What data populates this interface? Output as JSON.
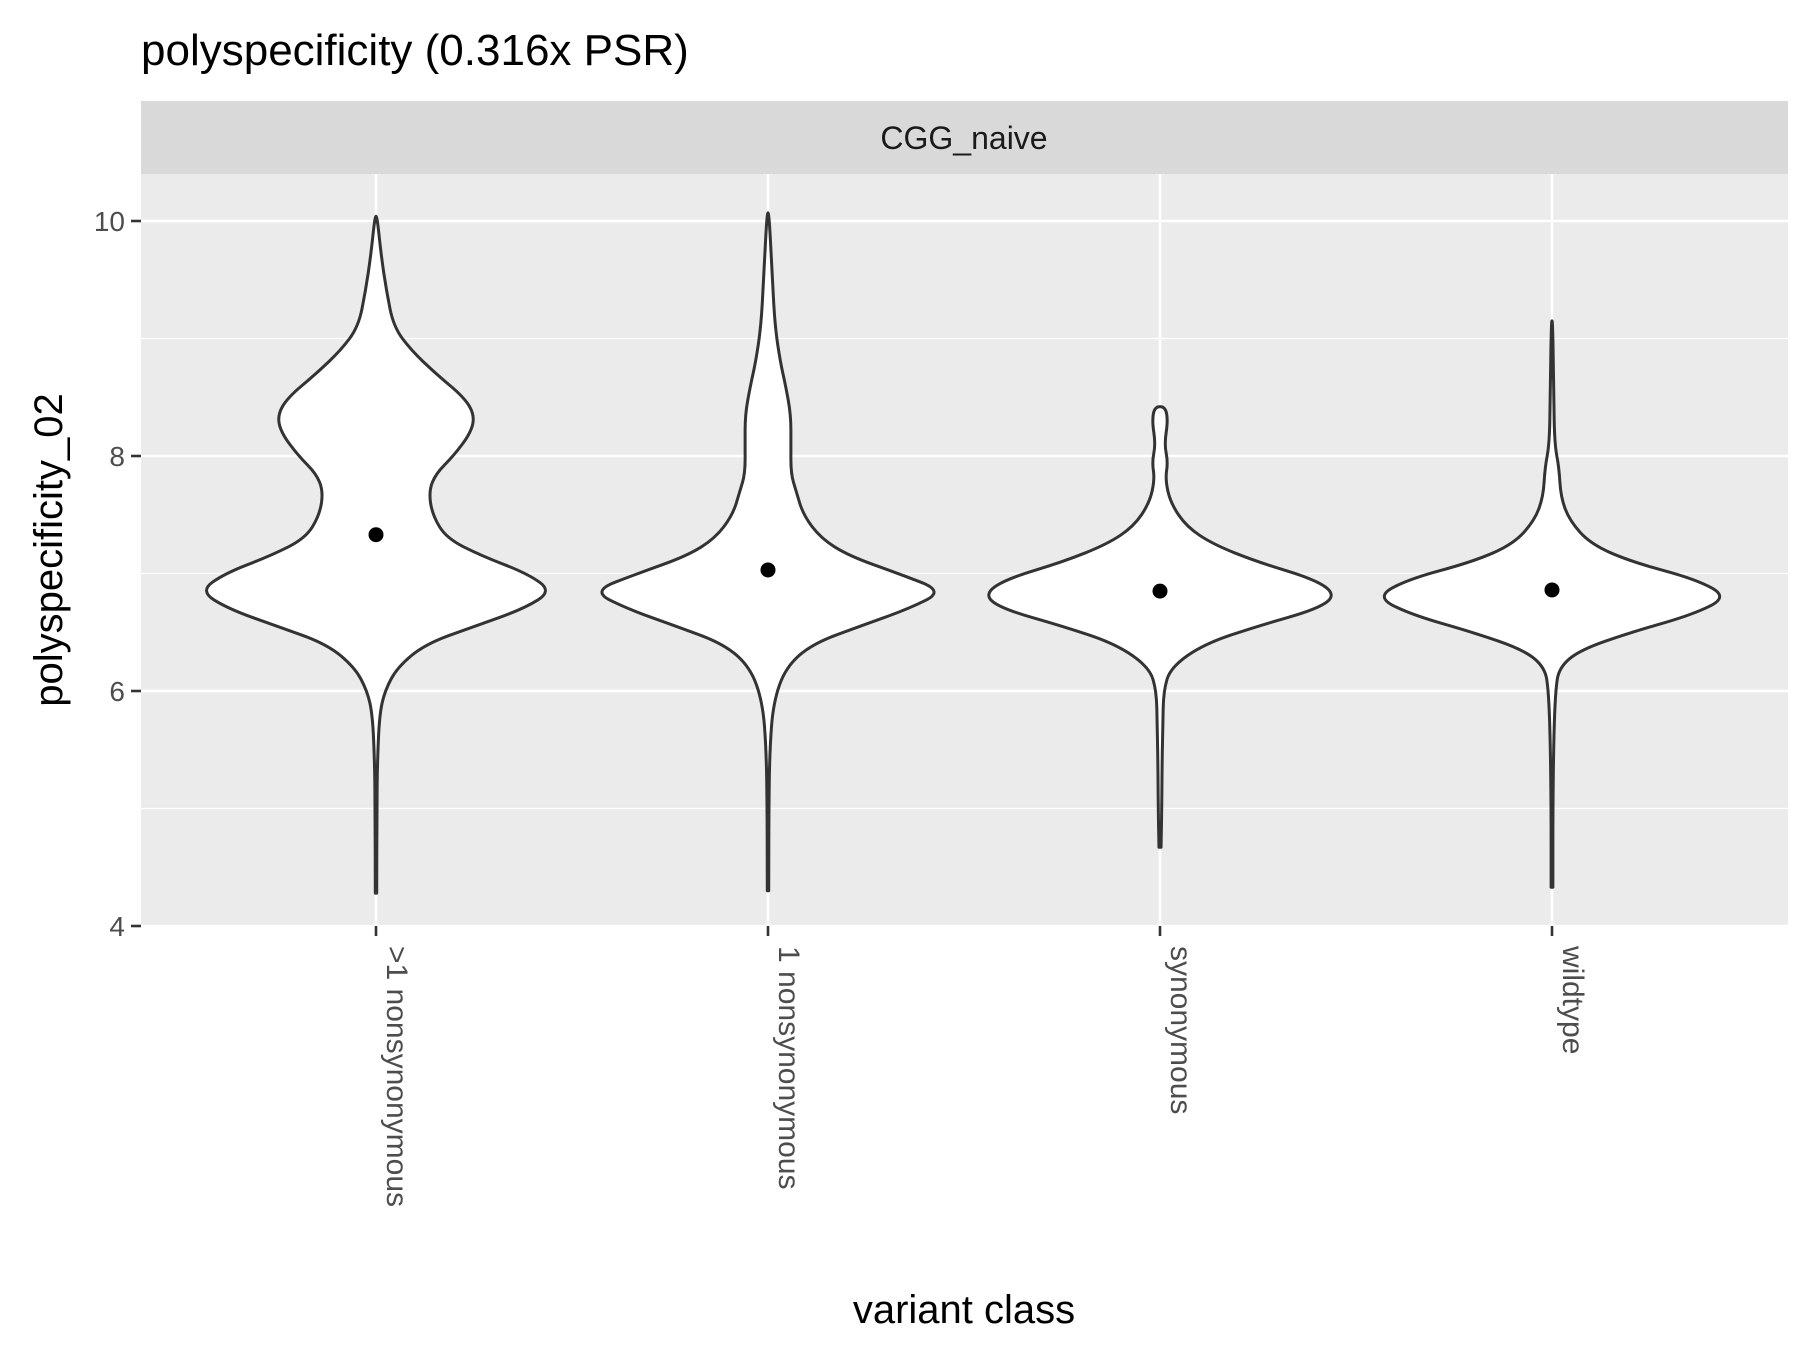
{
  "chart_data": {
    "type": "violin",
    "title": "polyspecificity (0.316x PSR)",
    "facet": "CGG_naive",
    "xlabel": "variant class",
    "ylabel": "polyspecificity_02",
    "ylim": [
      4,
      10.4
    ],
    "y_ticks": [
      4,
      6,
      8,
      10
    ],
    "y_tick_labels": [
      "4",
      "6",
      "8",
      "10"
    ],
    "categories": [
      ">1 nonsynonymous",
      "1 nonsynonymous",
      "synonymous",
      "wildtype"
    ],
    "means": [
      7.33,
      7.03,
      6.85,
      6.86
    ],
    "grid": true,
    "legend": "none",
    "series": [
      {
        "category": ">1 nonsynonymous",
        "y_range": [
          4.28,
          10.04
        ],
        "density_profile": [
          [
            4.28,
            0.004
          ],
          [
            5.0,
            0.005
          ],
          [
            5.4,
            0.008
          ],
          [
            5.8,
            0.02
          ],
          [
            6.0,
            0.05
          ],
          [
            6.2,
            0.12
          ],
          [
            6.4,
            0.28
          ],
          [
            6.55,
            0.56
          ],
          [
            6.7,
            0.84
          ],
          [
            6.85,
            1.0
          ],
          [
            7.0,
            0.86
          ],
          [
            7.15,
            0.6
          ],
          [
            7.3,
            0.4
          ],
          [
            7.5,
            0.32
          ],
          [
            7.7,
            0.3
          ],
          [
            7.85,
            0.34
          ],
          [
            8.0,
            0.44
          ],
          [
            8.2,
            0.54
          ],
          [
            8.35,
            0.56
          ],
          [
            8.5,
            0.5
          ],
          [
            8.7,
            0.34
          ],
          [
            8.9,
            0.2
          ],
          [
            9.1,
            0.1
          ],
          [
            9.4,
            0.06
          ],
          [
            9.7,
            0.03
          ],
          [
            10.04,
            0.006
          ]
        ]
      },
      {
        "category": "1 nonsynonymous",
        "y_range": [
          4.3,
          10.07
        ],
        "density_profile": [
          [
            4.3,
            0.004
          ],
          [
            5.0,
            0.005
          ],
          [
            5.5,
            0.01
          ],
          [
            5.9,
            0.03
          ],
          [
            6.2,
            0.1
          ],
          [
            6.4,
            0.25
          ],
          [
            6.55,
            0.52
          ],
          [
            6.7,
            0.8
          ],
          [
            6.85,
            1.0
          ],
          [
            7.0,
            0.74
          ],
          [
            7.15,
            0.46
          ],
          [
            7.3,
            0.3
          ],
          [
            7.5,
            0.2
          ],
          [
            7.7,
            0.16
          ],
          [
            7.85,
            0.13
          ],
          [
            8.1,
            0.13
          ],
          [
            8.35,
            0.13
          ],
          [
            8.6,
            0.1
          ],
          [
            8.8,
            0.07
          ],
          [
            9.1,
            0.04
          ],
          [
            9.5,
            0.025
          ],
          [
            10.07,
            0.006
          ]
        ]
      },
      {
        "category": "synonymous",
        "y_range": [
          4.67,
          8.42
        ],
        "density_profile": [
          [
            4.67,
            0.006
          ],
          [
            5.0,
            0.01
          ],
          [
            5.4,
            0.012
          ],
          [
            5.7,
            0.016
          ],
          [
            6.0,
            0.02
          ],
          [
            6.2,
            0.06
          ],
          [
            6.4,
            0.25
          ],
          [
            6.55,
            0.55
          ],
          [
            6.7,
            0.9
          ],
          [
            6.82,
            1.0
          ],
          [
            6.95,
            0.88
          ],
          [
            7.1,
            0.55
          ],
          [
            7.25,
            0.3
          ],
          [
            7.4,
            0.15
          ],
          [
            7.6,
            0.06
          ],
          [
            7.8,
            0.03
          ],
          [
            7.95,
            0.045
          ],
          [
            8.1,
            0.025
          ],
          [
            8.3,
            0.045
          ],
          [
            8.42,
            0.03
          ]
        ]
      },
      {
        "category": "wildtype",
        "y_range": [
          4.33,
          9.15
        ],
        "density_profile": [
          [
            4.33,
            0.005
          ],
          [
            5.0,
            0.005
          ],
          [
            5.6,
            0.01
          ],
          [
            6.0,
            0.02
          ],
          [
            6.2,
            0.04
          ],
          [
            6.35,
            0.16
          ],
          [
            6.5,
            0.45
          ],
          [
            6.65,
            0.8
          ],
          [
            6.8,
            1.0
          ],
          [
            6.95,
            0.82
          ],
          [
            7.1,
            0.45
          ],
          [
            7.25,
            0.22
          ],
          [
            7.45,
            0.1
          ],
          [
            7.65,
            0.05
          ],
          [
            7.9,
            0.04
          ],
          [
            8.1,
            0.015
          ],
          [
            8.5,
            0.01
          ],
          [
            9.15,
            0.004
          ]
        ]
      }
    ]
  }
}
